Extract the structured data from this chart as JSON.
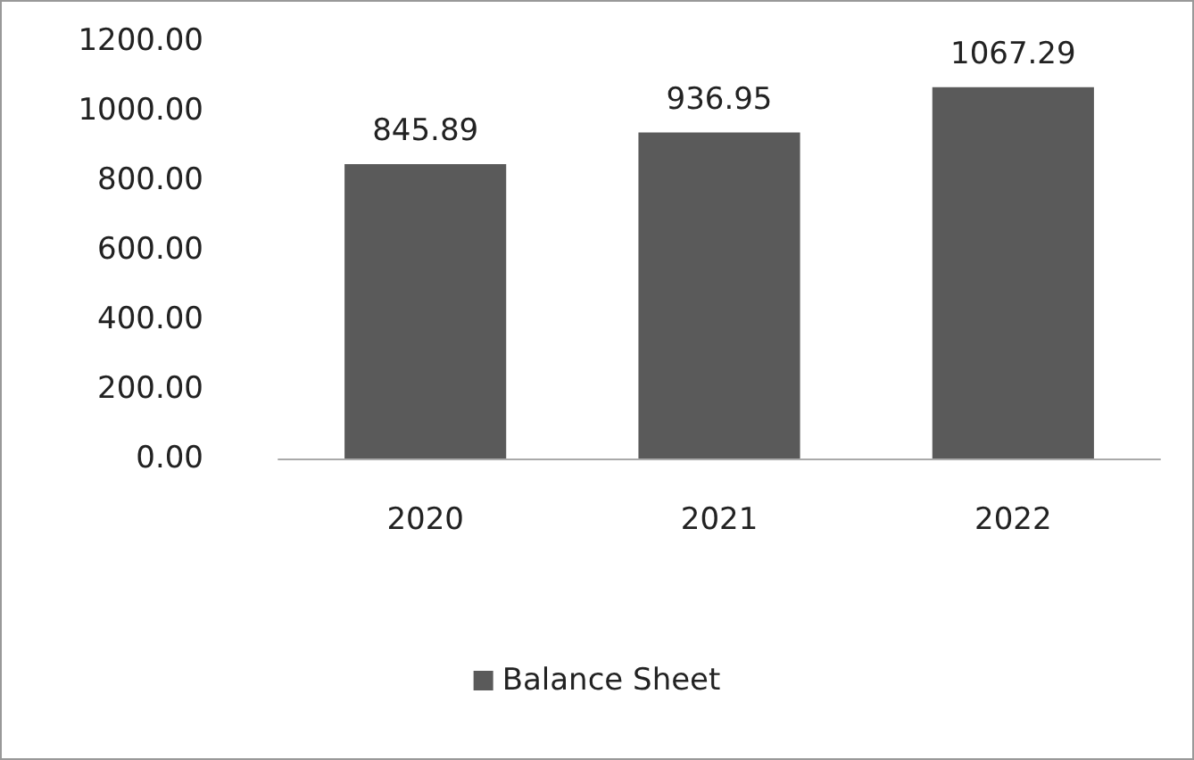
{
  "chart_data": {
    "type": "bar",
    "categories": [
      "2020",
      "2021",
      "2022"
    ],
    "series": [
      {
        "name": "Balance Sheet",
        "color": "#5a5a5a",
        "values": [
          845.89,
          936.95,
          1067.29
        ]
      }
    ],
    "ylim": [
      0,
      1200
    ],
    "yticks": [
      {
        "value": 0,
        "label": "0.00"
      },
      {
        "value": 200,
        "label": "200.00"
      },
      {
        "value": 400,
        "label": "400.00"
      },
      {
        "value": 600,
        "label": "600.00"
      },
      {
        "value": 800,
        "label": "800.00"
      },
      {
        "value": 1000,
        "label": "1000.00"
      },
      {
        "value": 1200,
        "label": "1200.00"
      }
    ],
    "data_labels": true,
    "grid": false,
    "legend": "bottom"
  }
}
